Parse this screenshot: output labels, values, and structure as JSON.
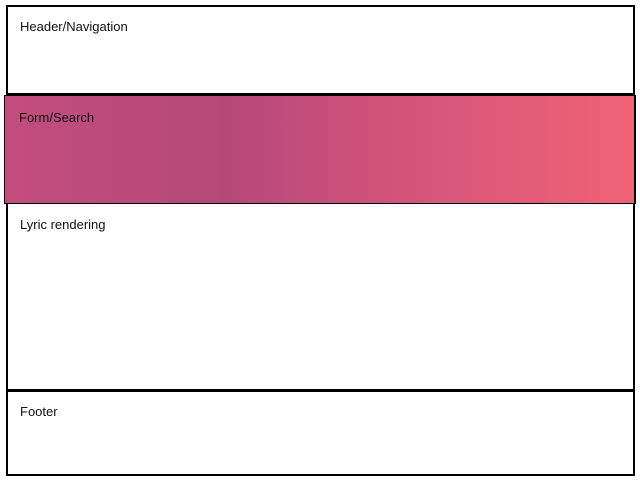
{
  "sections": {
    "header": {
      "label": "Header/Navigation"
    },
    "form_search": {
      "label": "Form/Search",
      "gradient_colors": [
        "#c24d7d",
        "#b5487a",
        "#d5557a",
        "#ef6374"
      ]
    },
    "lyrics": {
      "label": "Lyric rendering"
    },
    "footer": {
      "label": "Footer"
    }
  }
}
